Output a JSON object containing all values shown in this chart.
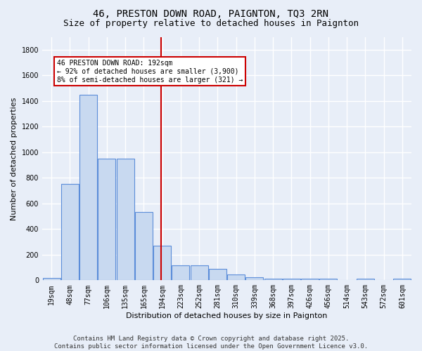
{
  "title": "46, PRESTON DOWN ROAD, PAIGNTON, TQ3 2RN",
  "subtitle": "Size of property relative to detached houses in Paignton",
  "xlabel": "Distribution of detached houses by size in Paignton",
  "ylabel": "Number of detached properties",
  "bin_labels": [
    "19sqm",
    "48sqm",
    "77sqm",
    "106sqm",
    "135sqm",
    "165sqm",
    "194sqm",
    "223sqm",
    "252sqm",
    "281sqm",
    "310sqm",
    "339sqm",
    "368sqm",
    "397sqm",
    "426sqm",
    "456sqm",
    "514sqm",
    "543sqm",
    "572sqm",
    "601sqm"
  ],
  "bar_heights": [
    20,
    750,
    1450,
    950,
    950,
    535,
    270,
    115,
    115,
    90,
    45,
    25,
    15,
    15,
    15,
    15,
    0,
    15,
    0,
    15
  ],
  "bar_color": "#c8d9f0",
  "bar_edge_color": "#5b8dd9",
  "bar_edge_width": 0.8,
  "red_line_bin_after": 5,
  "red_line_color": "#cc0000",
  "annotation_text": "46 PRESTON DOWN ROAD: 192sqm\n← 92% of detached houses are smaller (3,900)\n8% of semi-detached houses are larger (321) →",
  "annotation_box_color": "#ffffff",
  "annotation_box_edge_color": "#cc0000",
  "ylim": [
    0,
    1900
  ],
  "yticks": [
    0,
    200,
    400,
    600,
    800,
    1000,
    1200,
    1400,
    1600,
    1800
  ],
  "background_color": "#e8eef8",
  "grid_color": "#ffffff",
  "title_fontsize": 10,
  "subtitle_fontsize": 9,
  "ylabel_fontsize": 8,
  "xlabel_fontsize": 8,
  "tick_fontsize": 7,
  "annot_fontsize": 7,
  "footer_text": "Contains HM Land Registry data © Crown copyright and database right 2025.\nContains public sector information licensed under the Open Government Licence v3.0.",
  "footer_fontsize": 6.5
}
